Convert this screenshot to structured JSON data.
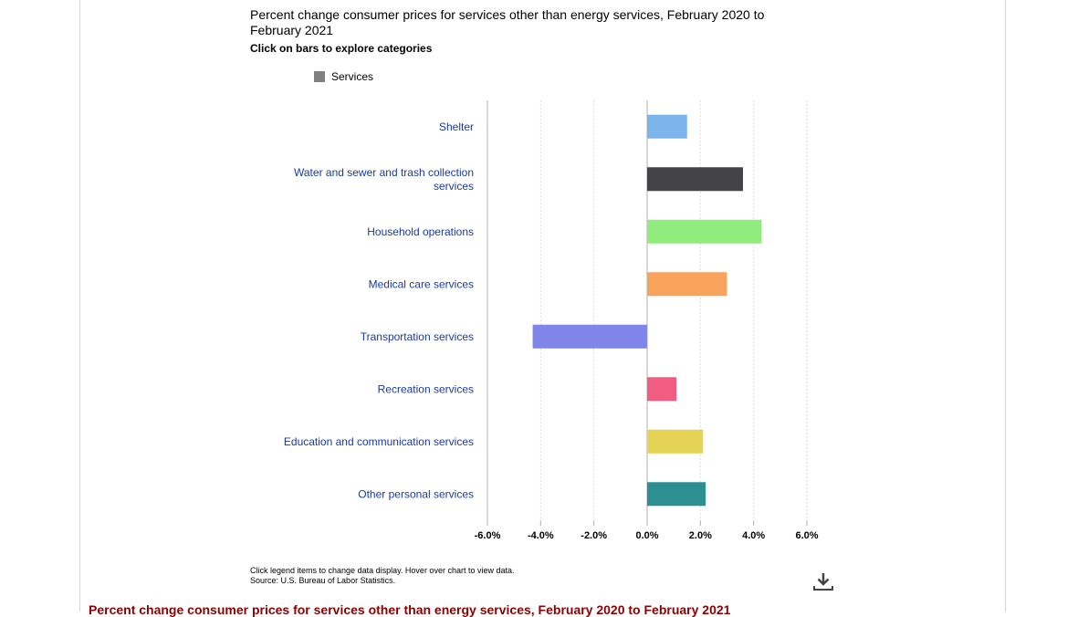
{
  "chart_data": {
    "type": "bar",
    "orientation": "horizontal",
    "title": "Percent change consumer prices for services other than energy services, February 2020 to February 2021",
    "subtitle": "Click on bars to explore categories",
    "legend": [
      "Services"
    ],
    "categories": [
      "Shelter",
      "Water and sewer and trash collection services",
      "Household operations",
      "Medical care services",
      "Transportation services",
      "Recreation services",
      "Education and communication services",
      "Other personal services"
    ],
    "values": [
      1.5,
      3.6,
      4.3,
      3.0,
      -4.3,
      1.1,
      2.1,
      2.2
    ],
    "colors": [
      "#7cb5ec",
      "#434348",
      "#90ed7d",
      "#f7a35c",
      "#8085e9",
      "#f15c80",
      "#e4d354",
      "#2b908f"
    ],
    "xlim": [
      -6,
      6
    ],
    "xticks": [
      -6,
      -4,
      -2,
      0,
      2,
      4,
      6
    ],
    "tick_labels": [
      "-6.0%",
      "-4.0%",
      "-2.0%",
      "0.0%",
      "2.0%",
      "4.0%",
      "6.0%"
    ],
    "grid": true,
    "legend_position": "top-left"
  },
  "footnote": {
    "line1": "Click legend items to change data display. Hover over chart to view data.",
    "line2": "Source: U.S. Bureau of Labor Statistics."
  },
  "bottom_title": "Percent change consumer prices for services other than energy services, February 2020 to February 2021",
  "icons": {
    "download": "download-icon"
  }
}
